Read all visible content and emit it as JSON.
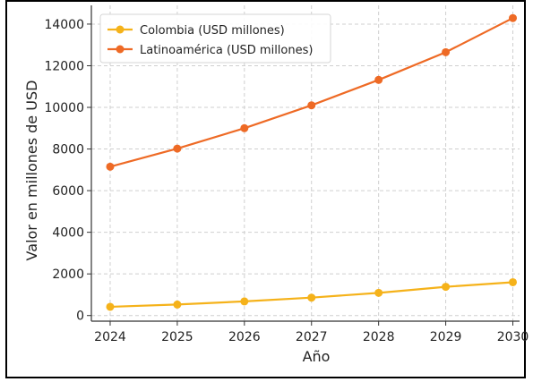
{
  "chart_data": {
    "type": "line",
    "x": [
      2024,
      2025,
      2026,
      2027,
      2028,
      2029,
      2030
    ],
    "series": [
      {
        "name": "Colombia (USD millones)",
        "color": "#f5b21a",
        "values": [
          420,
          530,
          680,
          860,
          1090,
          1380,
          1600
        ]
      },
      {
        "name": "Latinoamérica (USD millones)",
        "color": "#ee6a25",
        "values": [
          7150,
          8020,
          9000,
          10100,
          11320,
          12650,
          14290
        ]
      }
    ],
    "xlabel": "Año",
    "ylabel": "Valor en millones de USD",
    "xlim": [
      2023.72,
      2030.1
    ],
    "ylim": [
      -270,
      14900
    ],
    "yticks": [
      0,
      2000,
      4000,
      6000,
      8000,
      10000,
      12000,
      14000
    ],
    "xticks": [
      2024,
      2025,
      2026,
      2027,
      2028,
      2029,
      2030
    ],
    "grid": true,
    "legend_position": "top-left"
  }
}
